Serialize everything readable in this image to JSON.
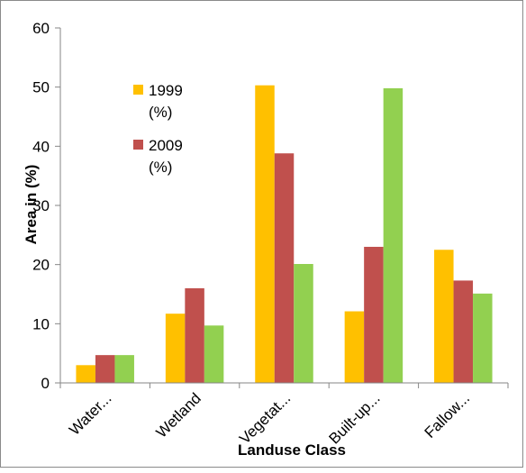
{
  "chart_data": {
    "type": "bar",
    "title": "",
    "xlabel": "Landuse Class",
    "ylabel": "Area in (%)",
    "ylim": [
      0,
      60
    ],
    "yticks": [
      0,
      10,
      20,
      30,
      40,
      50,
      60
    ],
    "categories": [
      "Water...",
      "Wetland",
      "Vegetat...",
      "Built-up...",
      "Fallow..."
    ],
    "series": [
      {
        "name": "1999 (%)",
        "name_lines": [
          "1999",
          "(%)"
        ],
        "color": "#FFC000",
        "values": [
          3.0,
          11.7,
          50.3,
          12.1,
          22.5
        ]
      },
      {
        "name": "2009 (%)",
        "name_lines": [
          "2009",
          "(%)"
        ],
        "color": "#C0504D",
        "values": [
          4.7,
          16.0,
          38.8,
          23.0,
          17.3
        ]
      },
      {
        "name": "",
        "color": "#92D050",
        "values": [
          4.7,
          9.7,
          20.1,
          49.8,
          15.1
        ]
      }
    ],
    "grid": false,
    "legend_position": "inside-top-left"
  }
}
